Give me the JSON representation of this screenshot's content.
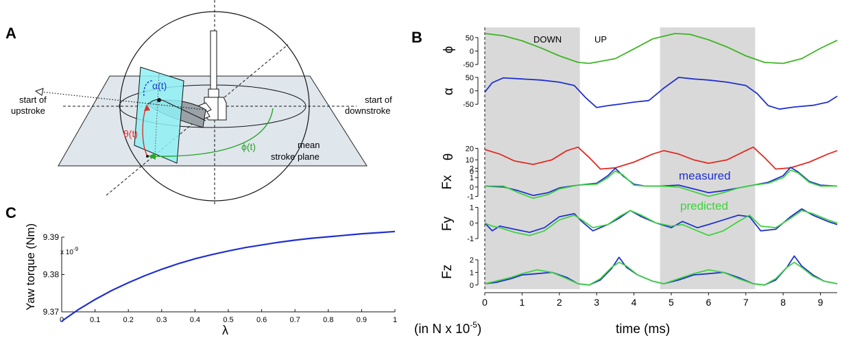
{
  "panel_a": {
    "label": "A",
    "upstroke": [
      "start of",
      "upstroke"
    ],
    "downstroke": [
      "start of",
      "downstroke"
    ],
    "alpha_label": "α(t)",
    "theta_label": "θ(t)",
    "phi_label": "ϕ(t)",
    "plane_label": [
      "mean",
      "stroke plane"
    ],
    "colors": {
      "plane": "#dfe6ec",
      "wing": "#8ff0f4",
      "alpha": "#1a3ccf",
      "theta": "#e0302a",
      "phi": "#2aa52a"
    }
  },
  "panel_b": {
    "label": "B",
    "down_label": "DOWN",
    "up_label": "UP",
    "xlabel": "time (ms)",
    "units_note": "(in N x 10",
    "units_exp": "-5",
    "units_close": ")",
    "measured_label": "measured",
    "predicted_label": "predicted"
  },
  "panel_c": {
    "label": "C",
    "ylabel": "Yaw torque (Nm)",
    "xlabel": "λ",
    "exp_label": "x 10",
    "exp_sup": "-9"
  },
  "chart_data": [
    {
      "type": "line",
      "panel": "B",
      "x_ticks": [
        "0",
        "1",
        "2",
        "3",
        "4",
        "5",
        "6",
        "7",
        "8",
        "9"
      ],
      "xlabel": "time (ms)",
      "xlim": [
        0,
        9.45
      ],
      "shaded_intervals": [
        [
          0,
          2.55
        ],
        [
          4.7,
          7.25
        ]
      ],
      "shaded_color": "#d9d9d9",
      "rows": [
        {
          "ylabel": "ϕ",
          "ylim": [
            -65,
            75
          ],
          "yticks": [
            "50",
            "0",
            "-50"
          ],
          "ytick_values": [
            50,
            0,
            -50
          ],
          "series": [
            {
              "color": "#3cb521",
              "x": [
                0,
                0.5,
                1,
                1.5,
                2,
                2.5,
                2.8,
                3.5,
                4,
                4.5,
                5.1,
                5.5,
                6,
                6.5,
                7,
                7.5,
                8,
                8.5,
                9,
                9.45
              ],
              "y": [
                65,
                57,
                38,
                12,
                -18,
                -42,
                -46,
                -28,
                8,
                45,
                65,
                62,
                42,
                15,
                -18,
                -42,
                -46,
                -28,
                10,
                40
              ]
            }
          ]
        },
        {
          "ylabel": "α",
          "ylim": [
            -75,
            70
          ],
          "yticks": [
            "50",
            "0",
            "-50"
          ],
          "ytick_values": [
            50,
            0,
            -50
          ],
          "series": [
            {
              "color": "#1f2fd0",
              "x": [
                0,
                0.2,
                0.5,
                1,
                1.5,
                2,
                2.4,
                2.7,
                3,
                3.3,
                3.7,
                4,
                4.4,
                4.8,
                5.2,
                5.6,
                6,
                6.5,
                7,
                7.3,
                7.6,
                7.9,
                8.3,
                8.8,
                9.2,
                9.45
              ],
              "y": [
                -5,
                30,
                48,
                44,
                40,
                32,
                20,
                -25,
                -62,
                -55,
                -48,
                -42,
                -36,
                10,
                50,
                44,
                40,
                32,
                20,
                -10,
                -55,
                -68,
                -60,
                -54,
                -42,
                -20
              ]
            }
          ]
        },
        {
          "ylabel": "θ",
          "ylim": [
            -3,
            28
          ],
          "yticks": [
            "20",
            "10",
            "0"
          ],
          "ytick_values": [
            20,
            10,
            0
          ],
          "series": [
            {
              "color": "#e2291f",
              "x": [
                0,
                0.4,
                0.8,
                1.3,
                1.8,
                2.2,
                2.5,
                2.8,
                3.1,
                3.5,
                4,
                4.5,
                4.8,
                5.2,
                5.6,
                6,
                6.5,
                7,
                7.2,
                7.5,
                7.8,
                8.2,
                8.7,
                9.2,
                9.45
              ],
              "y": [
                19,
                15,
                9,
                6,
                10,
                18,
                21,
                12,
                2,
                3,
                8,
                15,
                18,
                15,
                10,
                7,
                10,
                18,
                21,
                12,
                2,
                3,
                8,
                15,
                18
              ]
            }
          ]
        },
        {
          "ylabel": "Fx",
          "ylim": [
            -1.4,
            2.4
          ],
          "yticks": [
            "2",
            "1",
            "0",
            "-1"
          ],
          "ytick_values": [
            2,
            1,
            0,
            -1
          ],
          "series": [
            {
              "name": "measured",
              "color": "#1f2fd0",
              "x": [
                0,
                0.5,
                0.9,
                1.3,
                1.7,
                2,
                2.5,
                3,
                3.3,
                3.5,
                3.7,
                4,
                4.3,
                4.7,
                5.2,
                5.6,
                6,
                6.4,
                6.8,
                7.2,
                7.6,
                8,
                8.2,
                8.4,
                8.7,
                9,
                9.45
              ],
              "y": [
                0.1,
                0,
                -0.4,
                -0.9,
                -0.6,
                -0.1,
                0.2,
                0.4,
                1.2,
                2.0,
                1.2,
                0.3,
                0.1,
                0.1,
                0.2,
                -0.2,
                -0.6,
                -0.4,
                -0.1,
                0.2,
                0.5,
                1.2,
                2.1,
                1.6,
                0.6,
                0.2,
                0.1
              ]
            },
            {
              "name": "predicted",
              "color": "#3cd23c",
              "x": [
                0,
                0.5,
                0.9,
                1.3,
                1.7,
                2,
                2.5,
                3,
                3.3,
                3.5,
                3.7,
                4,
                4.3,
                4.7,
                5.2,
                5.6,
                6,
                6.4,
                6.8,
                7.2,
                7.6,
                8,
                8.2,
                8.4,
                8.7,
                9,
                9.45
              ],
              "y": [
                0.1,
                0.1,
                -0.6,
                -1.2,
                -0.8,
                -0.2,
                0.2,
                0.3,
                1.0,
                1.7,
                1.3,
                0.2,
                0.1,
                0.1,
                0.0,
                -0.5,
                -1.0,
                -0.6,
                -0.1,
                0.2,
                0.4,
                1.0,
                1.8,
                1.5,
                0.5,
                0.1,
                0.1
              ]
            }
          ]
        },
        {
          "ylabel": "Fy",
          "ylim": [
            -1.3,
            1.2
          ],
          "yticks": [
            "1",
            "0",
            "-1"
          ],
          "ytick_values": [
            1,
            0,
            -1
          ],
          "series": [
            {
              "name": "measured",
              "color": "#1f2fd0",
              "x": [
                0,
                0.2,
                0.4,
                0.8,
                1.2,
                1.6,
                2,
                2.4,
                2.6,
                2.9,
                3.3,
                3.6,
                3.9,
                4.2,
                4.6,
                5,
                5.3,
                5.7,
                6,
                6.4,
                6.8,
                7.1,
                7.4,
                7.8,
                8.2,
                8.5,
                8.8,
                9.2,
                9.45
              ],
              "y": [
                0,
                -0.5,
                -0.2,
                -0.4,
                -0.6,
                -0.3,
                0.4,
                0.6,
                0.1,
                -0.5,
                -0.1,
                0.3,
                0.8,
                0.4,
                0.0,
                -0.3,
                0.1,
                -0.3,
                -0.1,
                0.2,
                0.5,
                0.4,
                -0.5,
                -0.4,
                0.4,
                0.9,
                0.5,
                0.1,
                -0.1
              ]
            },
            {
              "name": "predicted",
              "color": "#3cd23c",
              "x": [
                0,
                0.2,
                0.4,
                0.8,
                1.2,
                1.6,
                2,
                2.4,
                2.6,
                2.9,
                3.3,
                3.6,
                3.9,
                4.2,
                4.6,
                5,
                5.3,
                5.7,
                6,
                6.4,
                6.8,
                7.1,
                7.4,
                7.8,
                8.2,
                8.5,
                8.8,
                9.2,
                9.45
              ],
              "y": [
                0,
                -0.2,
                -0.3,
                -0.6,
                -0.8,
                -0.5,
                0.2,
                0.5,
                0.2,
                -0.3,
                -0.1,
                0.4,
                0.8,
                0.5,
                0.0,
                -0.2,
                -0.1,
                -0.5,
                -0.8,
                -0.5,
                0.1,
                0.5,
                -0.2,
                -0.3,
                0.3,
                0.8,
                0.6,
                0.2,
                0.0
              ]
            }
          ]
        },
        {
          "ylabel": "Fz",
          "ylim": [
            -0.5,
            2.6
          ],
          "yticks": [
            "2",
            "1",
            "0"
          ],
          "ytick_values": [
            2,
            1,
            0
          ],
          "series": [
            {
              "name": "measured",
              "color": "#1f2fd0",
              "x": [
                0,
                0.3,
                0.7,
                1,
                1.4,
                1.8,
                2.2,
                2.5,
                2.8,
                3.1,
                3.4,
                3.6,
                3.8,
                4.1,
                4.5,
                4.8,
                5.2,
                5.6,
                6,
                6.4,
                6.8,
                7.2,
                7.5,
                7.8,
                8.1,
                8.3,
                8.5,
                8.8,
                9.1,
                9.45
              ],
              "y": [
                0.1,
                0.2,
                0.5,
                0.8,
                0.9,
                1.0,
                0.6,
                0.1,
                0.0,
                0.4,
                1.3,
                2.2,
                1.4,
                0.8,
                0.3,
                0.1,
                0.4,
                0.8,
                0.9,
                1.0,
                0.6,
                0.1,
                0.0,
                0.4,
                1.4,
                2.3,
                1.5,
                0.8,
                0.3,
                0.1
              ]
            },
            {
              "name": "predicted",
              "color": "#3cd23c",
              "x": [
                0,
                0.3,
                0.7,
                1,
                1.4,
                1.8,
                2.2,
                2.5,
                2.8,
                3.1,
                3.4,
                3.6,
                3.8,
                4.1,
                4.5,
                4.8,
                5.2,
                5.6,
                6,
                6.4,
                6.8,
                7.2,
                7.5,
                7.8,
                8.1,
                8.3,
                8.5,
                8.8,
                9.1,
                9.45
              ],
              "y": [
                0.1,
                0.3,
                0.6,
                0.9,
                1.2,
                1.0,
                0.5,
                0.1,
                0.0,
                0.5,
                1.4,
                1.8,
                1.5,
                0.8,
                0.3,
                0.1,
                0.5,
                0.9,
                1.2,
                1.0,
                0.5,
                0.1,
                0.0,
                0.5,
                1.4,
                1.8,
                1.4,
                0.7,
                0.3,
                0.1
              ]
            }
          ]
        }
      ]
    },
    {
      "type": "line",
      "panel": "C",
      "xlabel": "λ",
      "ylabel": "Yaw torque (Nm)",
      "xlim": [
        0,
        1
      ],
      "ylim": [
        9.37,
        9.39
      ],
      "x_ticks": [
        "0",
        "0.1",
        "0.2",
        "0.3",
        "0.4",
        "0.5",
        "0.6",
        "0.7",
        "0.8",
        "0.9",
        "1"
      ],
      "x_tick_values": [
        0,
        0.1,
        0.2,
        0.3,
        0.4,
        0.5,
        0.6,
        0.7,
        0.8,
        0.9,
        1
      ],
      "y_ticks": [
        "9.39",
        "9.38",
        "9.37"
      ],
      "y_tick_values": [
        9.39,
        9.38,
        9.37
      ],
      "series": [
        {
          "color": "#1f2fd0",
          "x": [
            0,
            0.05,
            0.1,
            0.15,
            0.2,
            0.25,
            0.3,
            0.35,
            0.4,
            0.45,
            0.5,
            0.55,
            0.6,
            0.65,
            0.7,
            0.75,
            0.8,
            0.85,
            0.9,
            0.95,
            1
          ],
          "y": [
            9.3675,
            9.3706,
            9.3733,
            9.3757,
            9.3778,
            9.3797,
            9.3814,
            9.3829,
            9.3842,
            9.3853,
            9.3863,
            9.3872,
            9.3879,
            9.3886,
            9.3892,
            9.3897,
            9.3901,
            9.3905,
            9.3909,
            9.3912,
            9.3915
          ]
        }
      ]
    }
  ]
}
